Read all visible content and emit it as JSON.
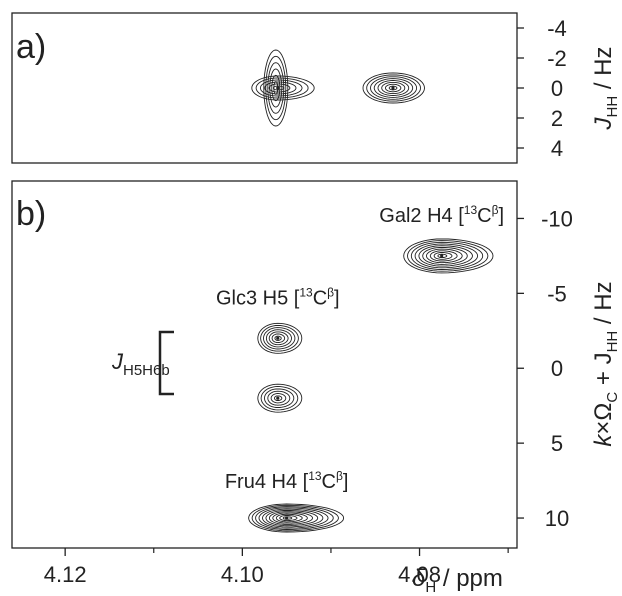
{
  "chart_data": [
    {
      "type": "contour",
      "panel_label": "a)",
      "ylabel": {
        "main": "J",
        "sub": "HH",
        "unit": " / Hz"
      },
      "ylim": [
        5,
        -5
      ],
      "yticks": [
        "-4",
        "-2",
        "0",
        "2",
        "4"
      ],
      "ytick_values": [
        -4,
        -2,
        0,
        2,
        4
      ],
      "xlim": [
        4.126,
        4.069
      ],
      "peaks": [
        {
          "x": 4.096,
          "y": 0,
          "shape": "cross"
        },
        {
          "x": 4.083,
          "y": 0,
          "shape": "oval"
        }
      ]
    },
    {
      "type": "contour",
      "panel_label": "b)",
      "ylabel": {
        "k": "k",
        "times_omega": "×Ω",
        "sub_c": "C",
        "plus_j": " + J",
        "sub_hh": "HH",
        "unit": " / Hz"
      },
      "ylim": [
        12,
        -12.5
      ],
      "yticks": [
        "-10",
        "-5",
        "0",
        "5",
        "10"
      ],
      "ytick_values": [
        -10,
        -5,
        0,
        5,
        10
      ],
      "xlabel": {
        "main": "δ",
        "sub": "H",
        "unit": " / ppm"
      },
      "xticks": [
        "4.12",
        "4.10",
        "4.08"
      ],
      "xtick_values": [
        4.12,
        4.1,
        4.08
      ],
      "xminor_values": [
        4.11,
        4.09,
        4.07
      ],
      "xlim": [
        4.126,
        4.069
      ],
      "peaks": [
        {
          "x": 4.0775,
          "y": -7.5,
          "name": "Gal2 H4",
          "isotope": "13",
          "atom": "C",
          "sup": "β"
        },
        {
          "x": 4.096,
          "y": -2,
          "name": "Glc3 H5",
          "isotope": "13",
          "atom": "C",
          "sup": "β"
        },
        {
          "x": 4.096,
          "y": 2,
          "name": "",
          "isotope": "",
          "atom": "",
          "sup": ""
        },
        {
          "x": 4.095,
          "y": 10,
          "name": "Fru4 H4",
          "isotope": "13",
          "atom": "C",
          "sup": "β"
        }
      ],
      "coupling_label": {
        "main": "J",
        "sub": "H5H6b"
      }
    }
  ]
}
